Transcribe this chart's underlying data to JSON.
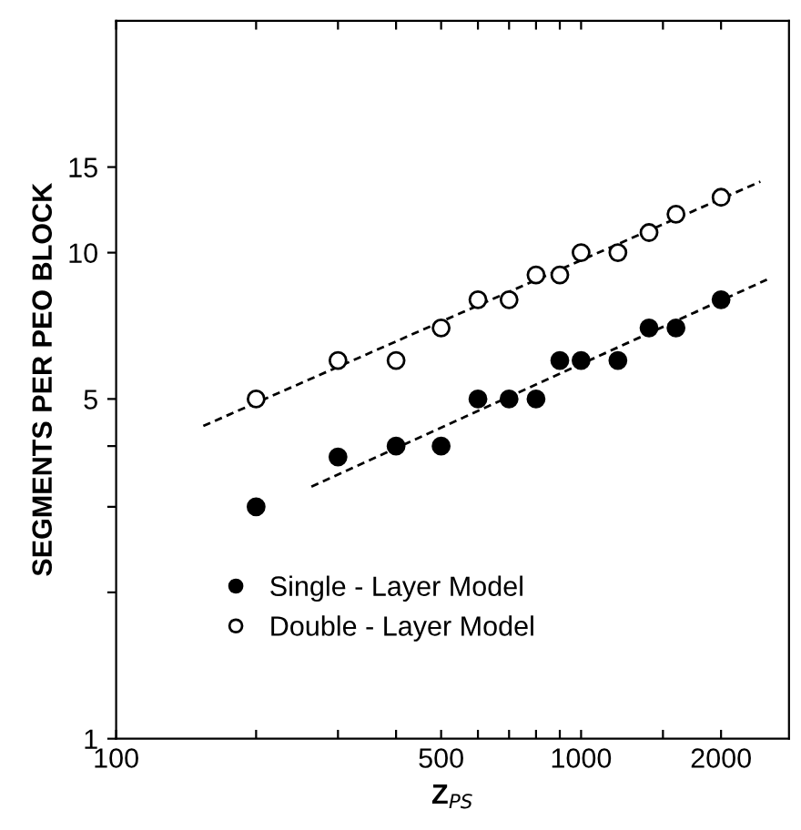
{
  "chart_data": {
    "type": "scatter",
    "xlabel": "Z$_{PS}$",
    "ylabel": "SEGMENTS PER PEO BLOCK",
    "log": "xy",
    "legend": "lower left",
    "grid": false,
    "xlim": [
      100,
      2800
    ],
    "ylim": [
      1,
      30
    ],
    "xticks": [
      100,
      {
        "value": 200,
        "label": null
      },
      {
        "value": 300,
        "label": null
      },
      {
        "value": 400,
        "label": null
      },
      500,
      {
        "value": 600,
        "label": null
      },
      {
        "value": 700,
        "label": null
      },
      {
        "value": 800,
        "label": null
      },
      {
        "value": 900,
        "label": null
      },
      1000,
      {
        "value": 1500,
        "label": null
      },
      2000
    ],
    "yticks": [
      1,
      {
        "value": 2,
        "label": null
      },
      {
        "value": 3,
        "label": null
      },
      {
        "value": 4,
        "label": null
      },
      5,
      10,
      15
    ],
    "series": [
      {
        "name": "Single - Layer Model",
        "color": "#000000",
        "marker": "circle",
        "x": [
          200,
          300,
          400,
          500,
          600,
          700,
          800,
          900,
          1000,
          1200,
          1400,
          1600,
          2000
        ],
        "values": [
          3.0,
          3.8,
          4.0,
          4.0,
          5.0,
          5.0,
          5.0,
          6.0,
          6.0,
          6.0,
          7.0,
          7.0,
          8.0
        ]
      },
      {
        "name": "Double - Layer Model",
        "color": "#ffffff",
        "marker": "circle",
        "x": [
          200,
          300,
          400,
          500,
          600,
          700,
          800,
          900,
          1000,
          1200,
          1400,
          1600,
          2000
        ],
        "values": [
          5.0,
          6.0,
          6.0,
          7.0,
          8.0,
          8.0,
          9.0,
          9.0,
          10.0,
          10.0,
          11.0,
          12.0,
          13.0
        ]
      },
      {
        "type": "line",
        "color": "#000000",
        "line_style": "dashed",
        "marker": "none",
        "x": [
          263,
          2510
        ],
        "values": [
          3.3,
          8.8
        ]
      },
      {
        "type": "line",
        "color": "#000000",
        "line_style": "dashed",
        "marker": "none",
        "x": [
          154,
          2430
        ],
        "values": [
          4.4,
          14.0
        ]
      }
    ]
  }
}
